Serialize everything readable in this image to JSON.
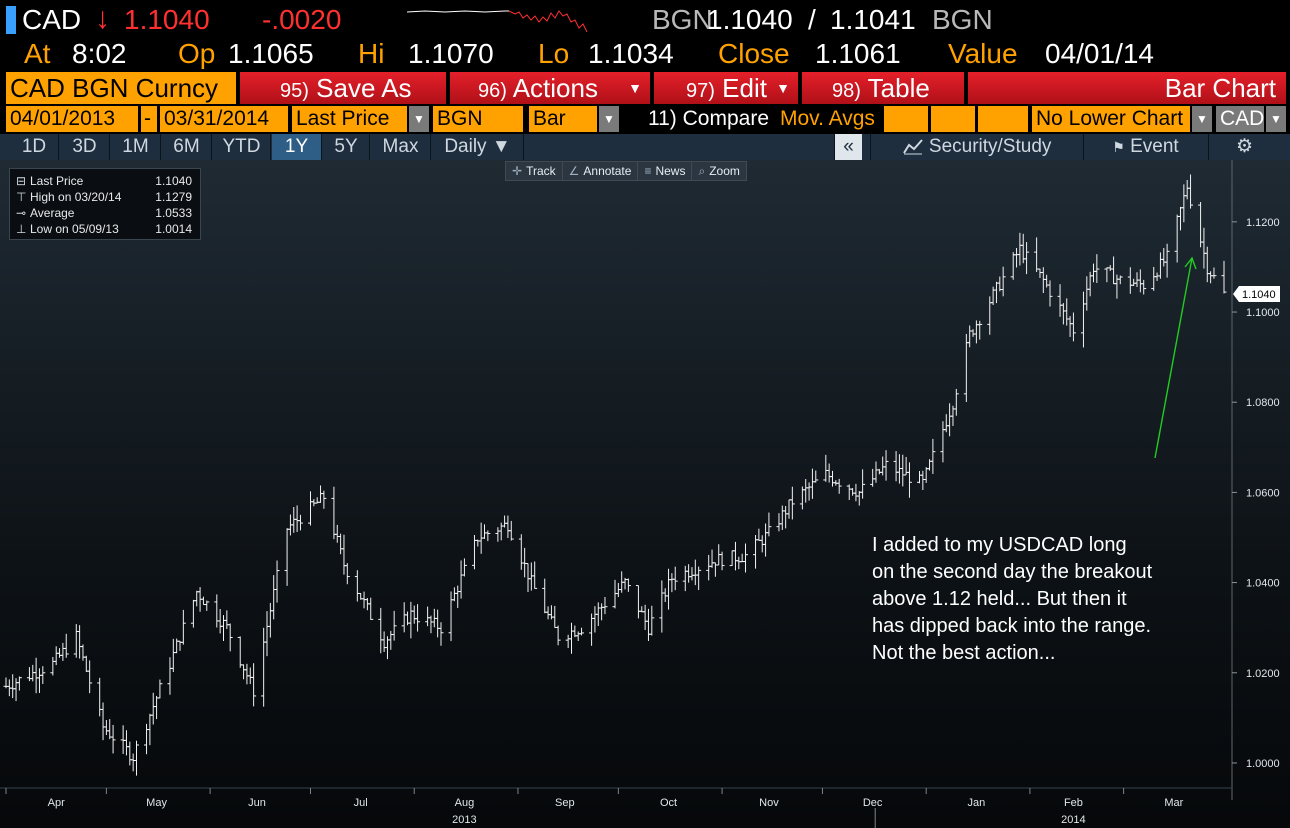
{
  "quote": {
    "ticker": "CAD",
    "direction_arrow": "↓",
    "last": "1.1040",
    "change": "-.0020",
    "bid_source": "BGN",
    "bid": "1.1040",
    "separator": "/",
    "ask": "1.1041",
    "ask_source": "BGN",
    "at_label": "At",
    "at_value": "8:02",
    "op_label": "Op",
    "op_value": "1.1065",
    "hi_label": "Hi",
    "hi_value": "1.1070",
    "lo_label": "Lo",
    "lo_value": "1.1034",
    "close_label": "Close",
    "close_value": "1.1061",
    "value_label": "Value",
    "value_value": "04/01/14"
  },
  "action_bar": {
    "security": "CAD BGN Curncy",
    "save_as": {
      "num": "95)",
      "label": "Save As"
    },
    "actions": {
      "num": "96)",
      "label": "Actions"
    },
    "edit": {
      "num": "97)",
      "label": "Edit"
    },
    "table": {
      "num": "98)",
      "label": "Table"
    },
    "chart_type": "Bar Chart"
  },
  "fields": {
    "start_date": "04/01/2013",
    "dash": "-",
    "end_date": "03/31/2014",
    "price_field": "Last Price",
    "pricing_source": "BGN",
    "style": "Bar",
    "compare": "11) Compare",
    "mov_avgs": "Mov. Avgs",
    "lower_chart": "No Lower Chart",
    "currency": "CAD"
  },
  "periods": {
    "items": [
      "1D",
      "3D",
      "1M",
      "6M",
      "YTD",
      "1Y",
      "5Y",
      "Max"
    ],
    "selected": "1Y",
    "frequency": "Daily ▼",
    "collapse": "«",
    "security_study": "Security/Study",
    "event": "Event",
    "settings_glyph": "⚙"
  },
  "tools": {
    "track": "Track",
    "annotate": "Annotate",
    "news": "News",
    "zoom": "Zoom"
  },
  "legend": {
    "last_label": "Last Price",
    "last_value": "1.1040",
    "high_label": "High on 03/20/14",
    "high_value": "1.1279",
    "avg_label": "Average",
    "avg_value": "1.0533",
    "low_label": "Low on 05/09/13",
    "low_value": "1.0014"
  },
  "annotation": {
    "lines": [
      "I added to my USDCAD long",
      "on the second day the breakout",
      "above 1.12 held...  But then it",
      "has dipped back into the range.",
      "Not the best action..."
    ],
    "arrow_color": "#22cc22"
  },
  "colors": {
    "accent_orange": "#ffa200",
    "down_red": "#ff3030",
    "button_red": "#d01820",
    "selected_period": "#2e5e86"
  },
  "chart_data": {
    "type": "bar",
    "y_ticks": [
      "1.1200",
      "1.1000",
      "1.0800",
      "1.0600",
      "1.0400",
      "1.0200",
      "1.0000"
    ],
    "ylim": [
      0.994,
      1.1315
    ],
    "last_price_label": "1.1040",
    "x_ticks": [
      "Apr",
      "May",
      "Jun",
      "Jul",
      "Aug",
      "Sep",
      "Oct",
      "Nov",
      "Dec",
      "Jan",
      "Feb",
      "Mar"
    ],
    "x_years": [
      "2013",
      "2014"
    ],
    "key_points": [
      [
        "2013-04-01",
        1.017
      ],
      [
        "2013-04-15",
        1.022
      ],
      [
        "2013-04-22",
        1.028
      ],
      [
        "2013-04-30",
        1.008
      ],
      [
        "2013-05-09",
        1.0014
      ],
      [
        "2013-05-20",
        1.022
      ],
      [
        "2013-05-28",
        1.038
      ],
      [
        "2013-06-06",
        1.03
      ],
      [
        "2013-06-14",
        1.016
      ],
      [
        "2013-06-24",
        1.052
      ],
      [
        "2013-07-05",
        1.059
      ],
      [
        "2013-07-11",
        1.044
      ],
      [
        "2013-07-23",
        1.027
      ],
      [
        "2013-07-31",
        1.033
      ],
      [
        "2013-08-09",
        1.03
      ],
      [
        "2013-08-20",
        1.05
      ],
      [
        "2013-08-29",
        1.053
      ],
      [
        "2013-09-05",
        1.04
      ],
      [
        "2013-09-13",
        1.028
      ],
      [
        "2013-09-20",
        1.03
      ],
      [
        "2013-10-03",
        1.04
      ],
      [
        "2013-10-10",
        1.03
      ],
      [
        "2013-10-17",
        1.041
      ],
      [
        "2013-10-30",
        1.045
      ],
      [
        "2013-11-08",
        1.046
      ],
      [
        "2013-11-15",
        1.051
      ],
      [
        "2013-11-22",
        1.058
      ],
      [
        "2013-12-02",
        1.064
      ],
      [
        "2013-12-12",
        1.06
      ],
      [
        "2013-12-20",
        1.066
      ],
      [
        "2013-12-31",
        1.062
      ],
      [
        "2014-01-09",
        1.08
      ],
      [
        "2014-01-14",
        1.095
      ],
      [
        "2014-01-22",
        1.105
      ],
      [
        "2014-01-29",
        1.114
      ],
      [
        "2014-02-05",
        1.107
      ],
      [
        "2014-02-14",
        1.096
      ],
      [
        "2014-02-20",
        1.11
      ],
      [
        "2014-02-28",
        1.107
      ],
      [
        "2014-03-07",
        1.106
      ],
      [
        "2014-03-14",
        1.112
      ],
      [
        "2014-03-20",
        1.1279
      ],
      [
        "2014-03-26",
        1.11
      ],
      [
        "2014-03-31",
        1.104
      ]
    ],
    "grid": false
  }
}
